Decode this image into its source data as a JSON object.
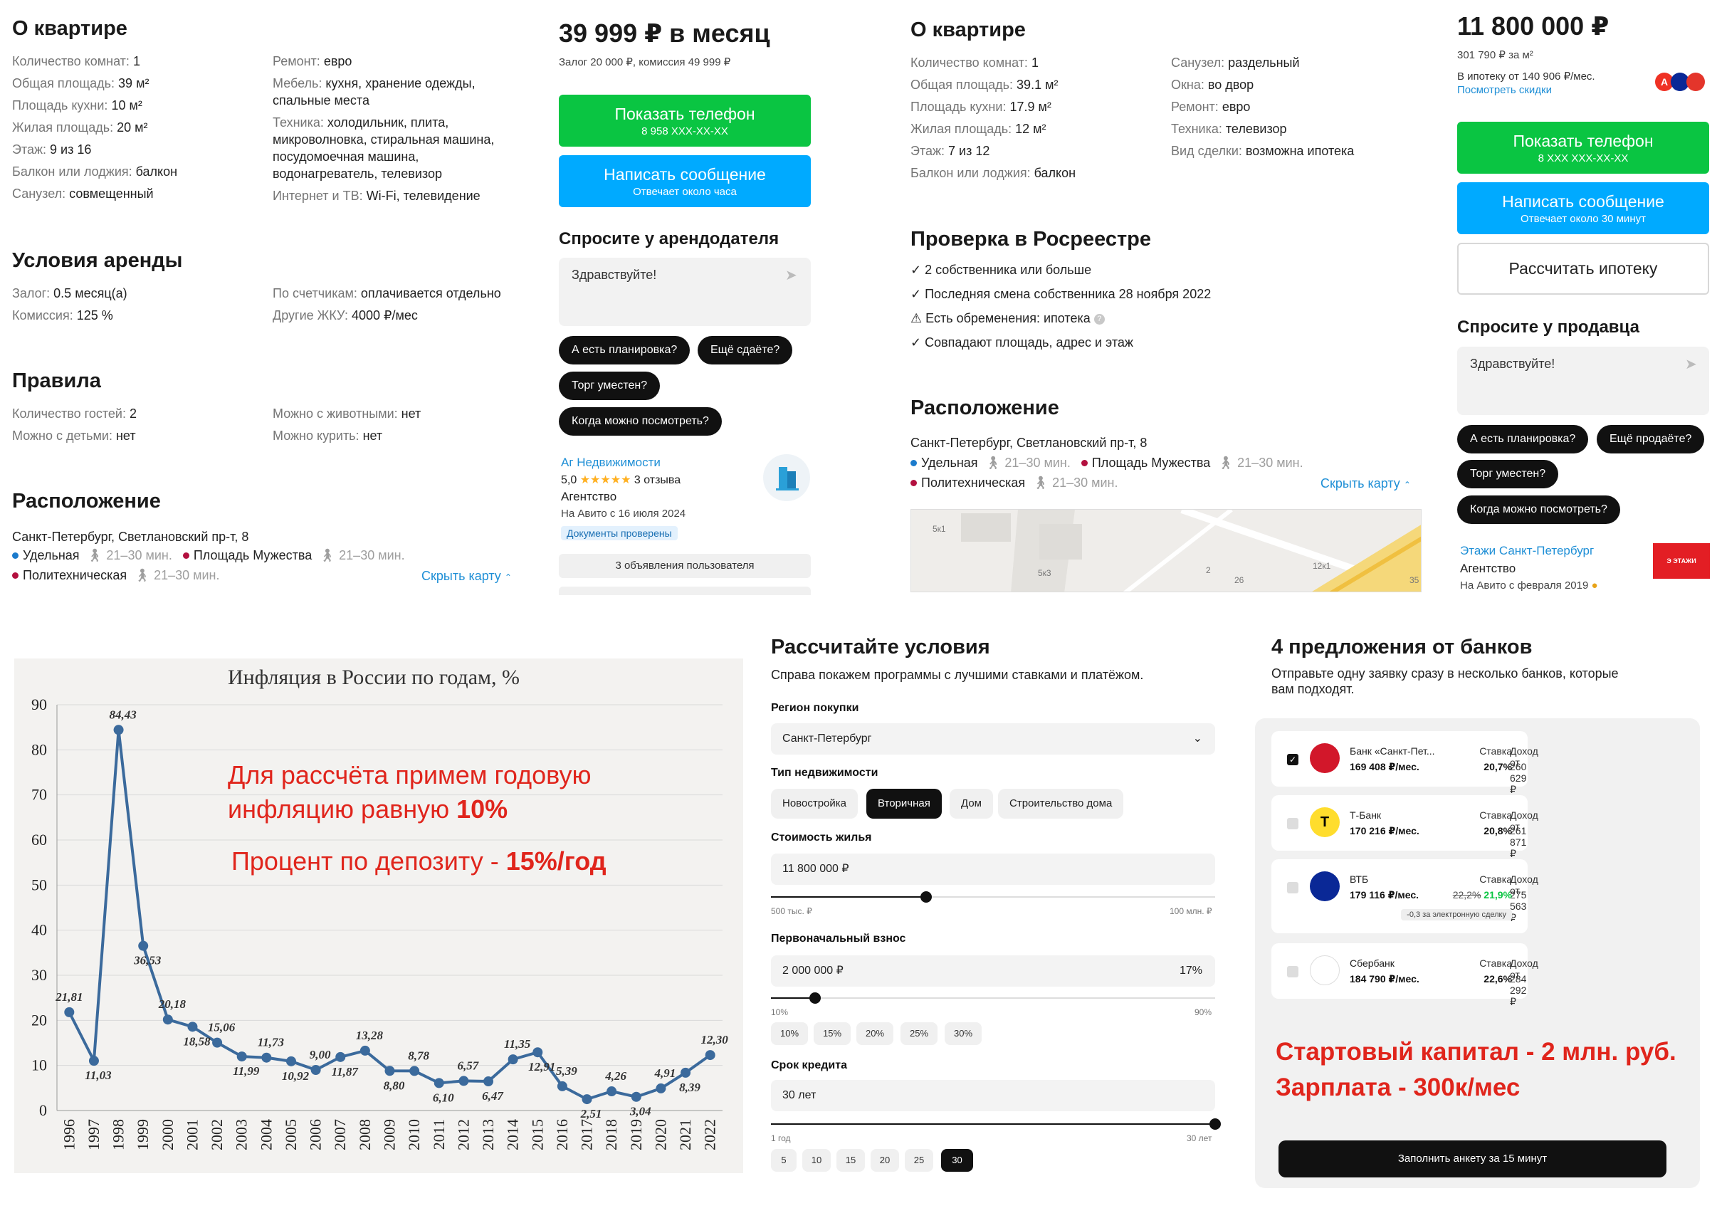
{
  "rent_listing": {
    "about": {
      "title": "О квартире",
      "left": [
        {
          "k": "Количество комнат: ",
          "v": "1"
        },
        {
          "k": "Общая площадь: ",
          "v": "39 м²"
        },
        {
          "k": "Площадь кухни: ",
          "v": "10 м²"
        },
        {
          "k": "Жилая площадь: ",
          "v": "20 м²"
        },
        {
          "k": "Этаж: ",
          "v": "9 из 16"
        },
        {
          "k": "Балкон или лоджия: ",
          "v": "балкон"
        },
        {
          "k": "Санузел: ",
          "v": "совмещенный"
        }
      ],
      "right": [
        {
          "k": "Ремонт: ",
          "v": "евро"
        },
        {
          "k": "Мебель: ",
          "v": "кухня, хранение одежды, спальные места"
        },
        {
          "k": "Техника: ",
          "v": "холодильник, плита, микроволновка, стиральная машина, посудомоечная машина, водонагреватель, телевизор"
        },
        {
          "k": "Интернет и ТВ: ",
          "v": "Wi-Fi, телевидение"
        }
      ]
    },
    "terms": {
      "title": "Условия аренды",
      "left": [
        {
          "k": "Залог: ",
          "v": "0.5 месяц(а)"
        },
        {
          "k": "Комиссия: ",
          "v": "125 %"
        }
      ],
      "right": [
        {
          "k": "По счетчикам: ",
          "v": "оплачивается отдельно"
        },
        {
          "k": "Другие ЖКУ: ",
          "v": "4000 ₽/мес"
        }
      ]
    },
    "rules": {
      "title": "Правила",
      "left": [
        {
          "k": "Количество гостей: ",
          "v": "2"
        },
        {
          "k": "Можно с детьми: ",
          "v": "нет"
        }
      ],
      "right": [
        {
          "k": "Можно с животными: ",
          "v": "нет"
        },
        {
          "k": "Можно курить: ",
          "v": "нет"
        }
      ]
    },
    "location": {
      "title": "Расположение",
      "address": "Санкт-Петербург, Светлановский пр-т, 8",
      "metro1": "Удельная",
      "metro1_time": "21–30 мин.",
      "metro2": "Площадь Мужества",
      "metro2_time": "21–30 мин.",
      "metro3": "Политехническая",
      "metro3_time": "21–30 мин.",
      "hide_map": "Скрыть карту"
    },
    "price": "39 999 ₽ в месяц",
    "deposit": "Залог 20 000 ₽, комиссия 49 999 ₽",
    "show_phone": "Показать телефон",
    "phone": "8 958 XXX-XX-XX",
    "write_msg": "Написать сообщение",
    "replies": "Отвечает около часа",
    "ask_title": "Спросите у арендодателя",
    "msg_placeholder": "Здравствуйте!",
    "chips": [
      "А есть планировка?",
      "Ещё сдаёте?",
      "Торг уместен?",
      "Когда можно посмотреть?"
    ],
    "agent": {
      "name": "Аг Недвижимости",
      "rating": "5,0",
      "stars": "★★★★★",
      "reviews": "3 отзыва",
      "type": "Агентство",
      "since": "На Авито с 16 июля 2024",
      "verified": "Документы проверены",
      "listings": "3 объявления пользователя"
    }
  },
  "sale_listing": {
    "about": {
      "title": "О квартире",
      "left": [
        {
          "k": "Количество комнат: ",
          "v": "1"
        },
        {
          "k": "Общая площадь: ",
          "v": "39.1 м²"
        },
        {
          "k": "Площадь кухни: ",
          "v": "17.9 м²"
        },
        {
          "k": "Жилая площадь: ",
          "v": "12 м²"
        },
        {
          "k": "Этаж: ",
          "v": "7 из 12"
        },
        {
          "k": "Балкон или лоджия: ",
          "v": "балкон"
        }
      ],
      "right": [
        {
          "k": "Санузел: ",
          "v": "раздельный"
        },
        {
          "k": "Окна: ",
          "v": "во двор"
        },
        {
          "k": "Ремонт: ",
          "v": "евро"
        },
        {
          "k": "Техника: ",
          "v": "телевизор"
        },
        {
          "k": "Вид сделки: ",
          "v": "возможна ипотека"
        }
      ]
    },
    "rosreestr": {
      "title": "Проверка в Росреестре",
      "checks": [
        "2 собственника или больше",
        "Последняя смена собственника 28 ноября 2022",
        "Есть обременения: ипотека",
        "Совпадают площадь, адрес и этаж"
      ]
    },
    "location": {
      "title": "Расположение",
      "address": "Санкт-Петербург, Светлановский пр-т, 8",
      "metro1": "Удельная",
      "metro1_time": "21–30 мин.",
      "metro2": "Площадь Мужества",
      "metro2_time": "21–30 мин.",
      "metro3": "Политехническая",
      "metro3_time": "21–30 мин.",
      "hide_map": "Скрыть карту",
      "map_labels": [
        "5к1",
        "5к3",
        "2",
        "26",
        "12к1",
        "35"
      ]
    },
    "price": "11 800 000 ₽",
    "per_m2": "301 790 ₽ за м²",
    "mortgage": "В ипотеку от 140 906 ₽/мес.",
    "discounts": "Посмотреть скидки",
    "show_phone": "Показать телефон",
    "phone": "8 XXX XXX-XX-XX",
    "write_msg": "Написать сообщение",
    "replies": "Отвечает около 30 минут",
    "calc": "Рассчитать ипотеку",
    "ask_title": "Спросите у продавца",
    "msg_placeholder": "Здравствуйте!",
    "chips": [
      "А есть планировка?",
      "Ещё продаёте?",
      "Торг уместен?",
      "Когда можно посмотреть?"
    ],
    "agent": {
      "name": "Этажи Санкт-Петербург",
      "type": "Агентство",
      "since": "На Авито с февраля 2019",
      "logo_text": "Э ЭТАЖИ"
    }
  },
  "inflation": {
    "annotation1": "Для рассчёта примем годовую",
    "annotation2a": "инфляцию равную ",
    "annotation2b": "10%",
    "annotation3a": "Процент по депозиту - ",
    "annotation3b": "15%/год"
  },
  "chart_data": {
    "type": "line",
    "title": "Инфляция в России по годам, %",
    "x": [
      "1996",
      "1997",
      "1998",
      "1999",
      "2000",
      "2001",
      "2002",
      "2003",
      "2004",
      "2005",
      "2006",
      "2007",
      "2008",
      "2009",
      "2010",
      "2011",
      "2012",
      "2013",
      "2014",
      "2015",
      "2016",
      "2017",
      "2018",
      "2019",
      "2020",
      "2021",
      "2022"
    ],
    "values": [
      21.81,
      11.03,
      84.43,
      36.53,
      20.18,
      18.58,
      15.06,
      11.99,
      11.73,
      10.92,
      9.0,
      11.87,
      13.28,
      8.8,
      8.78,
      6.1,
      6.57,
      6.47,
      11.35,
      12.91,
      5.39,
      2.51,
      4.26,
      3.04,
      4.91,
      8.39,
      12.3
    ],
    "labels": [
      "21,81",
      "11,03",
      "84,43",
      "36,53",
      "20,18",
      "18,58",
      "15,06",
      "11,99",
      "11,73",
      "10,92",
      "9,00",
      "11,87",
      "13,28",
      "8,80",
      "8,78",
      "6,10",
      "6,57",
      "6,47",
      "11,35",
      "12,91",
      "5,39",
      "2,51",
      "4,26",
      "3,04",
      "4,91",
      "8,39",
      "12,30"
    ],
    "yticks": [
      "0",
      "10",
      "20",
      "30",
      "40",
      "50",
      "60",
      "70",
      "80",
      "90"
    ],
    "ylim": [
      0,
      90
    ],
    "grid": true,
    "color": "#3b6a9c"
  },
  "calculator": {
    "title": "Рассчитайте условия",
    "subtitle": "Справа покажем программы с лучшими ставками и платёжом.",
    "region_label": "Регион покупки",
    "region": "Санкт-Петербург",
    "type_label": "Тип недвижимости",
    "types": [
      "Новостройка",
      "Вторичная",
      "Дом",
      "Строительство дома"
    ],
    "type_selected": "Вторичная",
    "cost_label": "Стоимость жилья",
    "cost": "11 800 000 ₽",
    "cost_min": "500 тыс. ₽",
    "cost_max": "100 млн. ₽",
    "cost_fraction": 0.35,
    "down_label": "Первоначальный взнос",
    "down": "2 000 000 ₽",
    "down_pct": "17%",
    "down_min": "10%",
    "down_max": "90%",
    "down_fraction": 0.1,
    "down_pcts": [
      "10%",
      "15%",
      "20%",
      "25%",
      "30%"
    ],
    "term_label": "Срок кредита",
    "term": "30 лет",
    "term_min": "1 год",
    "term_max": "30 лет",
    "term_fraction": 1.0,
    "terms": [
      "5",
      "10",
      "15",
      "20",
      "25",
      "30"
    ],
    "term_selected": "30"
  },
  "banks": {
    "title": "4 предложения от банков",
    "subtitle1": "Отправьте одну заявку сразу в несколько банков, которые",
    "subtitle2": "вам подходят.",
    "income_label": "Доход от",
    "rate_label": "Ставка",
    "items": [
      {
        "name": "Банк «Санкт-Пет...",
        "payment": "169 408 ₽/мес.",
        "income": "260 629 ₽",
        "rate": "20,7%",
        "checked": true,
        "color": "#d2172a"
      },
      {
        "name": "Т-Банк",
        "payment": "170 216 ₽/мес.",
        "income": "261 871 ₽",
        "rate": "20,8%",
        "checked": false,
        "color": "#ffdd2d",
        "logo": "T"
      },
      {
        "name": "ВТБ",
        "payment": "179 116 ₽/мес.",
        "income": "275 563 ₽",
        "old_rate": "22,2%",
        "rate": "21,9%",
        "note": "-0,3 за электронную сделку",
        "checked": false,
        "color": "#0a2896"
      },
      {
        "name": "Сбербанк",
        "payment": "184 790 ₽/мес.",
        "income": "284 292 ₽",
        "rate": "22,6%",
        "checked": false,
        "color": "#ffffff"
      }
    ],
    "capital_text": "Стартовый капитал - 2 млн. руб.",
    "salary_text": "Зарплата - 300к/мес",
    "submit": "Заполнить анкету за 15 минут"
  }
}
